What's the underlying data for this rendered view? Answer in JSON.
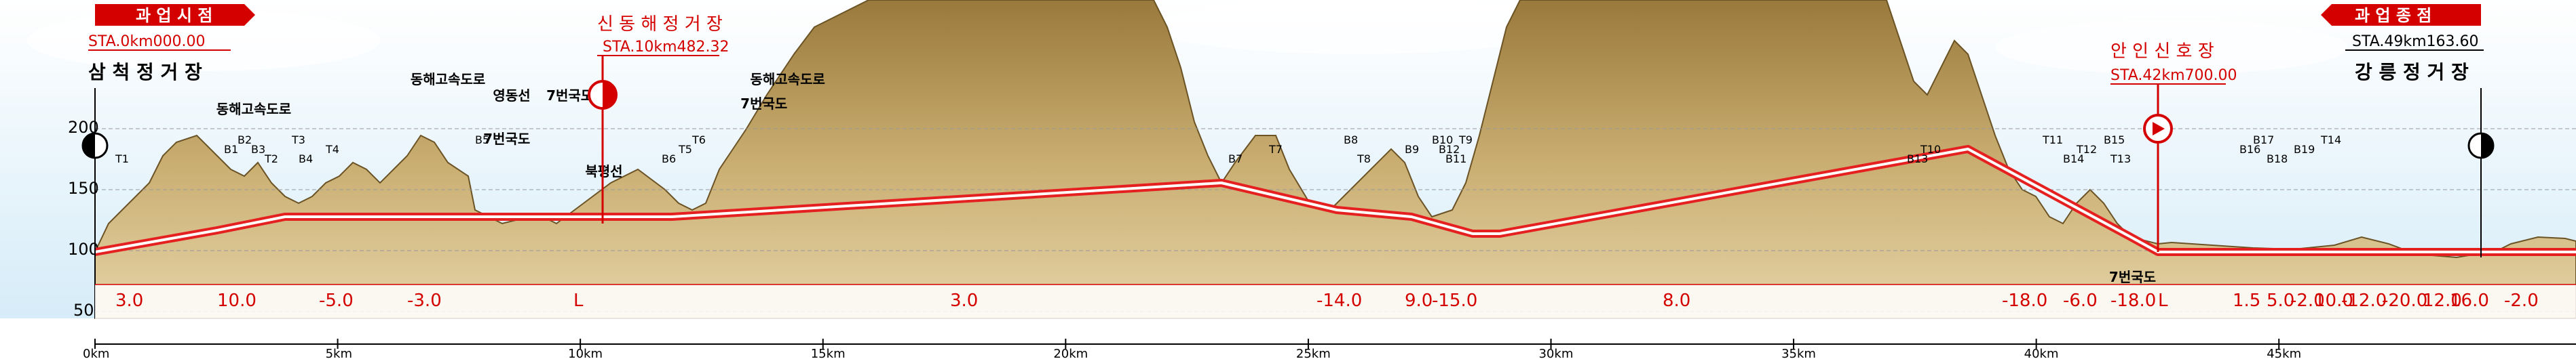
{
  "project": {
    "start_banner": "과 업 시 점",
    "end_banner": "과 업 종 점",
    "start_sta": "STA.0km000.00",
    "end_sta": "STA.49km163.60",
    "start_station": "삼 척 정 거 장",
    "end_station": "강 릉 정 거 장",
    "mid_station": "신 동 해 정 거 장",
    "mid_sta": "STA.10km482.32",
    "signal_station": "안 인 신 호 장",
    "signal_sta": "STA.42km700.00"
  },
  "y_axis": {
    "ticks": [
      "200",
      "150",
      "100",
      "50"
    ]
  },
  "x_axis": {
    "ticks": [
      "0km",
      "5km",
      "10km",
      "15km",
      "20km",
      "25km",
      "30km",
      "35km",
      "40km",
      "45km"
    ]
  },
  "road_labels": [
    {
      "text": "동해고속도로",
      "x_km": 2.5
    },
    {
      "text": "동해고속도로",
      "x_km": 6.5
    },
    {
      "text": "영동선",
      "x_km": 8.2
    },
    {
      "text": "7번국도",
      "x_km": 9.3
    },
    {
      "text": "동해고속도로",
      "x_km": 13.5
    },
    {
      "text": "7번국도",
      "x_km": 13.3
    },
    {
      "text": "7번국도",
      "x_km": 8.0
    },
    {
      "text": "북평선",
      "x_km": 10.1
    },
    {
      "text": "7번국도",
      "x_km": 41.5
    }
  ],
  "structures": [
    "T1",
    "B1",
    "B2",
    "T2",
    "B3",
    "T3",
    "B4",
    "T4",
    "B5",
    "B6",
    "T5",
    "T6",
    "B7",
    "T7",
    "B8",
    "T8",
    "B9",
    "B10",
    "B11",
    "B12",
    "T9",
    "B13",
    "T10",
    "T11",
    "B14",
    "T12",
    "B15",
    "T13",
    "B16",
    "B17",
    "B18",
    "B19",
    "T14"
  ],
  "gradients": [
    "3.0",
    "10.0",
    "-5.0",
    "-3.0",
    "L",
    "3.0",
    "-14.0",
    "9.0",
    "-15.0",
    "8.0",
    "-18.0",
    "-6.0",
    "-18.0",
    "L",
    "1.5",
    "5.0",
    "-2.0",
    "10.0",
    "-12.0",
    "-20.0",
    "12.0",
    "16.0",
    "-2.0"
  ],
  "colors": {
    "track": "#e52020",
    "ground": "#b89a5c",
    "sky": "#cfe7f7",
    "accent": "#d40000"
  }
}
